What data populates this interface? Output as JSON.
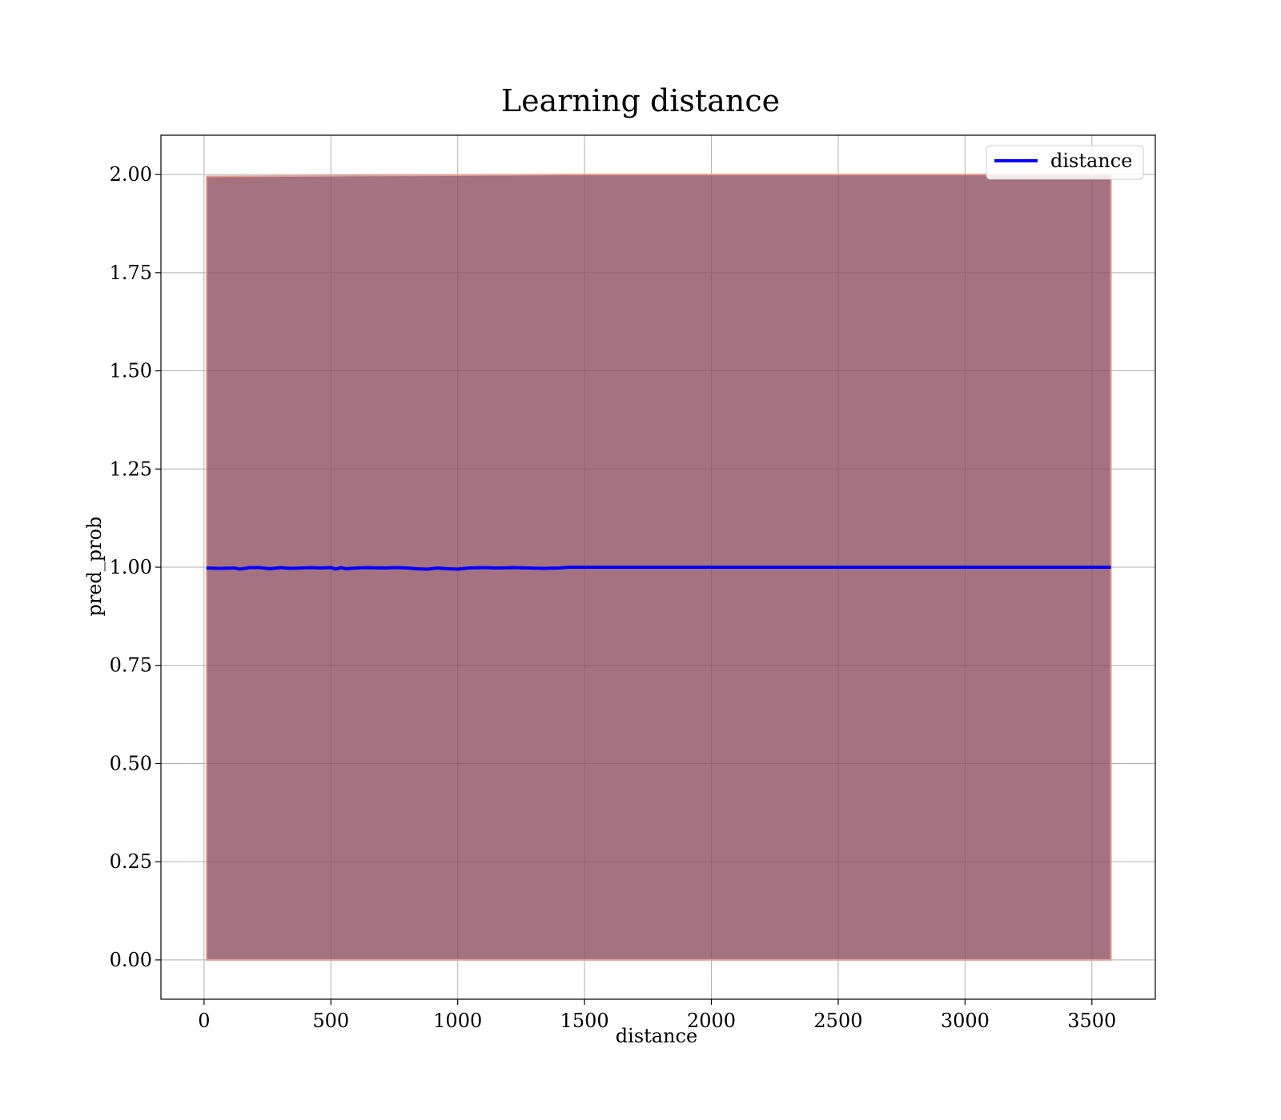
{
  "chart_data": {
    "type": "line",
    "title": "Learning distance",
    "xlabel": "distance",
    "ylabel": "pred_prob",
    "xlim": [
      -170,
      3750
    ],
    "ylim": [
      -0.1,
      2.1
    ],
    "xticks": [
      0,
      500,
      1000,
      1500,
      2000,
      2500,
      3000,
      3500
    ],
    "yticks": [
      0.0,
      0.25,
      0.5,
      0.75,
      1.0,
      1.25,
      1.5,
      1.75,
      2.0
    ],
    "ytick_labels": [
      "0.00",
      "0.25",
      "0.50",
      "0.75",
      "1.00",
      "1.25",
      "1.50",
      "1.75",
      "2.00"
    ],
    "grid": true,
    "legend": {
      "position": "top-right",
      "entries": [
        "distance"
      ]
    },
    "colors": {
      "line": "#0000ff",
      "band": "#8b4a5c",
      "band_edge": "#e8a090"
    },
    "series": [
      {
        "name": "distance",
        "x": [
          10,
          60,
          120,
          140,
          180,
          220,
          260,
          300,
          340,
          380,
          420,
          460,
          500,
          520,
          540,
          560,
          600,
          640,
          700,
          760,
          800,
          840,
          880,
          920,
          960,
          1000,
          1040,
          1100,
          1160,
          1220,
          1280,
          1340,
          1400,
          1440,
          1600,
          2000,
          2500,
          3000,
          3500,
          3575
        ],
        "y": [
          0.998,
          0.997,
          0.998,
          0.995,
          0.999,
          0.999,
          0.996,
          0.999,
          0.997,
          0.998,
          0.999,
          0.998,
          0.999,
          0.995,
          0.999,
          0.996,
          0.998,
          0.999,
          0.998,
          0.999,
          0.998,
          0.996,
          0.995,
          0.998,
          0.996,
          0.995,
          0.998,
          0.999,
          0.998,
          0.999,
          0.998,
          0.997,
          0.998,
          1.0,
          1.0,
          1.0,
          1.0,
          1.0,
          1.0,
          1.0
        ]
      }
    ],
    "band": {
      "x": [
        10,
        1440,
        3575
      ],
      "upper": [
        1.995,
        2.0,
        2.0
      ],
      "lower": [
        0.0,
        0.0,
        0.0
      ]
    }
  }
}
